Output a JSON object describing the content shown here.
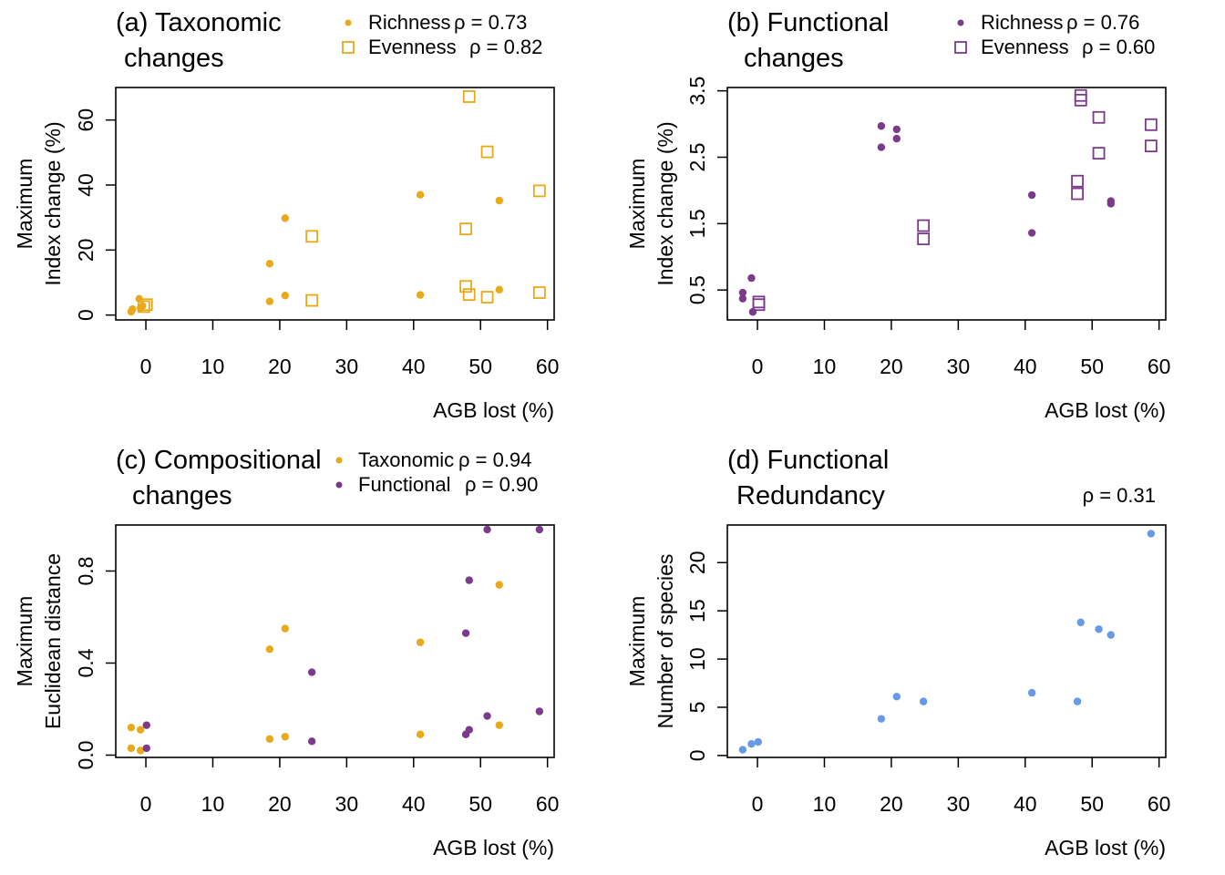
{
  "colors": {
    "taxonomic": "#E9A91A",
    "functional": "#7B3A8A",
    "redundancy": "#6699E8"
  },
  "chart_data": [
    {
      "id": "a",
      "type": "scatter",
      "title_lines": [
        "(a) Taxonomic",
        "changes"
      ],
      "xlabel": "AGB lost (%)",
      "ylabel_lines": [
        "Maximum",
        "Index change (%)"
      ],
      "xlim": [
        -4.5,
        61
      ],
      "ylim": [
        -1.5,
        70
      ],
      "xticks": [
        0,
        10,
        20,
        30,
        40,
        50,
        60
      ],
      "yticks": [
        0,
        20,
        40,
        60
      ],
      "legend": [
        {
          "label": "Richness",
          "stat": "ρ = 0.73",
          "marker": "dot",
          "color": "#E9A91A"
        },
        {
          "label": "Evenness",
          "stat": "ρ = 0.82",
          "marker": "square",
          "color": "#E9A91A"
        }
      ],
      "series": [
        {
          "name": "Richness",
          "marker": "dot",
          "color": "#E9A91A",
          "x": [
            -2.2,
            -2.0,
            -1.0,
            -0.8,
            -0.5,
            18.5,
            18.5,
            20.8,
            20.8,
            41,
            41,
            52.8,
            52.8
          ],
          "y": [
            1.0,
            1.8,
            5.0,
            2.2,
            2.8,
            15.8,
            4.2,
            29.8,
            6.0,
            37.0,
            6.2,
            35.2,
            7.8
          ]
        },
        {
          "name": "Evenness",
          "marker": "square",
          "color": "#E9A91A",
          "x": [
            -0.3,
            0.1,
            24.8,
            24.8,
            47.8,
            47.8,
            48.3,
            48.3,
            51.0,
            51.0,
            58.8,
            58.8
          ],
          "y": [
            2.6,
            3.2,
            24.2,
            4.5,
            26.5,
            8.8,
            67.2,
            6.3,
            50.2,
            5.5,
            38.2,
            6.9
          ]
        }
      ]
    },
    {
      "id": "b",
      "type": "scatter",
      "title_lines": [
        "(b) Functional",
        "changes"
      ],
      "xlabel": "AGB lost (%)",
      "ylabel_lines": [
        "Maximum",
        "Index change (%)"
      ],
      "xlim": [
        -4.5,
        61
      ],
      "ylim": [
        0.05,
        3.55
      ],
      "xticks": [
        0,
        10,
        20,
        30,
        40,
        50,
        60
      ],
      "yticks": [
        0.5,
        1.5,
        2.5,
        3.5
      ],
      "legend": [
        {
          "label": "Richness",
          "stat": "ρ = 0.76",
          "marker": "dot",
          "color": "#7B3A8A"
        },
        {
          "label": "Evenness",
          "stat": "ρ = 0.60",
          "marker": "square",
          "color": "#7B3A8A"
        }
      ],
      "series": [
        {
          "name": "Richness",
          "marker": "dot",
          "color": "#7B3A8A",
          "x": [
            -2.2,
            -2.2,
            -0.9,
            -0.7,
            18.5,
            18.5,
            20.8,
            20.8,
            41,
            41,
            52.8,
            52.8
          ],
          "y": [
            0.46,
            0.37,
            0.68,
            0.17,
            2.97,
            2.65,
            2.92,
            2.78,
            1.93,
            1.36,
            1.84,
            1.8
          ]
        },
        {
          "name": "Evenness",
          "marker": "square",
          "color": "#7B3A8A",
          "x": [
            0.2,
            0.2,
            24.8,
            24.8,
            47.8,
            47.8,
            48.3,
            48.3,
            51.0,
            51.0,
            58.8,
            58.8
          ],
          "y": [
            0.32,
            0.28,
            1.47,
            1.27,
            2.14,
            1.95,
            3.43,
            3.36,
            3.1,
            2.56,
            2.99,
            2.67
          ]
        }
      ]
    },
    {
      "id": "c",
      "type": "scatter",
      "title_lines": [
        "(c) Compositional",
        "changes"
      ],
      "xlabel": "AGB lost (%)",
      "ylabel_lines": [
        "Maximum",
        "Euclidean distance"
      ],
      "xlim": [
        -4.5,
        61
      ],
      "ylim": [
        -0.01,
        1.0
      ],
      "xticks": [
        0,
        10,
        20,
        30,
        40,
        50,
        60
      ],
      "yticks": [
        0.0,
        0.4,
        0.8
      ],
      "ytick_labels": [
        "0.0",
        "0.4",
        "0.8"
      ],
      "legend": [
        {
          "label": "Taxonomic",
          "stat": "ρ = 0.94",
          "marker": "dot",
          "color": "#E9A91A"
        },
        {
          "label": "Functional",
          "stat": "ρ = 0.90",
          "marker": "dot",
          "color": "#7B3A8A"
        }
      ],
      "series": [
        {
          "name": "Taxonomic",
          "marker": "dot",
          "color": "#E9A91A",
          "x": [
            -2.2,
            -2.2,
            -0.8,
            -0.8,
            18.5,
            18.5,
            20.8,
            20.8,
            41,
            41,
            52.8,
            52.8
          ],
          "y": [
            0.12,
            0.03,
            0.11,
            0.02,
            0.46,
            0.07,
            0.55,
            0.08,
            0.49,
            0.09,
            0.74,
            0.13
          ]
        },
        {
          "name": "Functional",
          "marker": "dot",
          "color": "#7B3A8A",
          "x": [
            0.1,
            0.1,
            24.8,
            24.8,
            47.8,
            47.8,
            48.3,
            48.3,
            51.0,
            51.0,
            58.8,
            58.8
          ],
          "y": [
            0.13,
            0.03,
            0.36,
            0.06,
            0.53,
            0.09,
            0.76,
            0.11,
            0.98,
            0.17,
            0.98,
            0.19
          ]
        }
      ]
    },
    {
      "id": "d",
      "type": "scatter",
      "title_lines": [
        "(d) Functional",
        "Redundancy"
      ],
      "xlabel": "AGB lost (%)",
      "ylabel_lines": [
        "Maximum",
        "Number of species"
      ],
      "xlim": [
        -4.5,
        61
      ],
      "ylim": [
        -0.2,
        23.9
      ],
      "xticks": [
        0,
        10,
        20,
        30,
        40,
        50,
        60
      ],
      "yticks": [
        0,
        5,
        10,
        15,
        20
      ],
      "stat": "ρ = 0.31",
      "series": [
        {
          "name": "Redundancy",
          "marker": "dot",
          "color": "#6699E8",
          "x": [
            -2.2,
            -0.9,
            0.1,
            18.5,
            20.8,
            24.8,
            41,
            47.8,
            48.3,
            51.0,
            52.8,
            58.8
          ],
          "y": [
            0.6,
            1.2,
            1.4,
            3.8,
            6.1,
            5.6,
            6.5,
            5.6,
            13.8,
            13.1,
            12.5,
            23.0
          ]
        }
      ]
    }
  ]
}
